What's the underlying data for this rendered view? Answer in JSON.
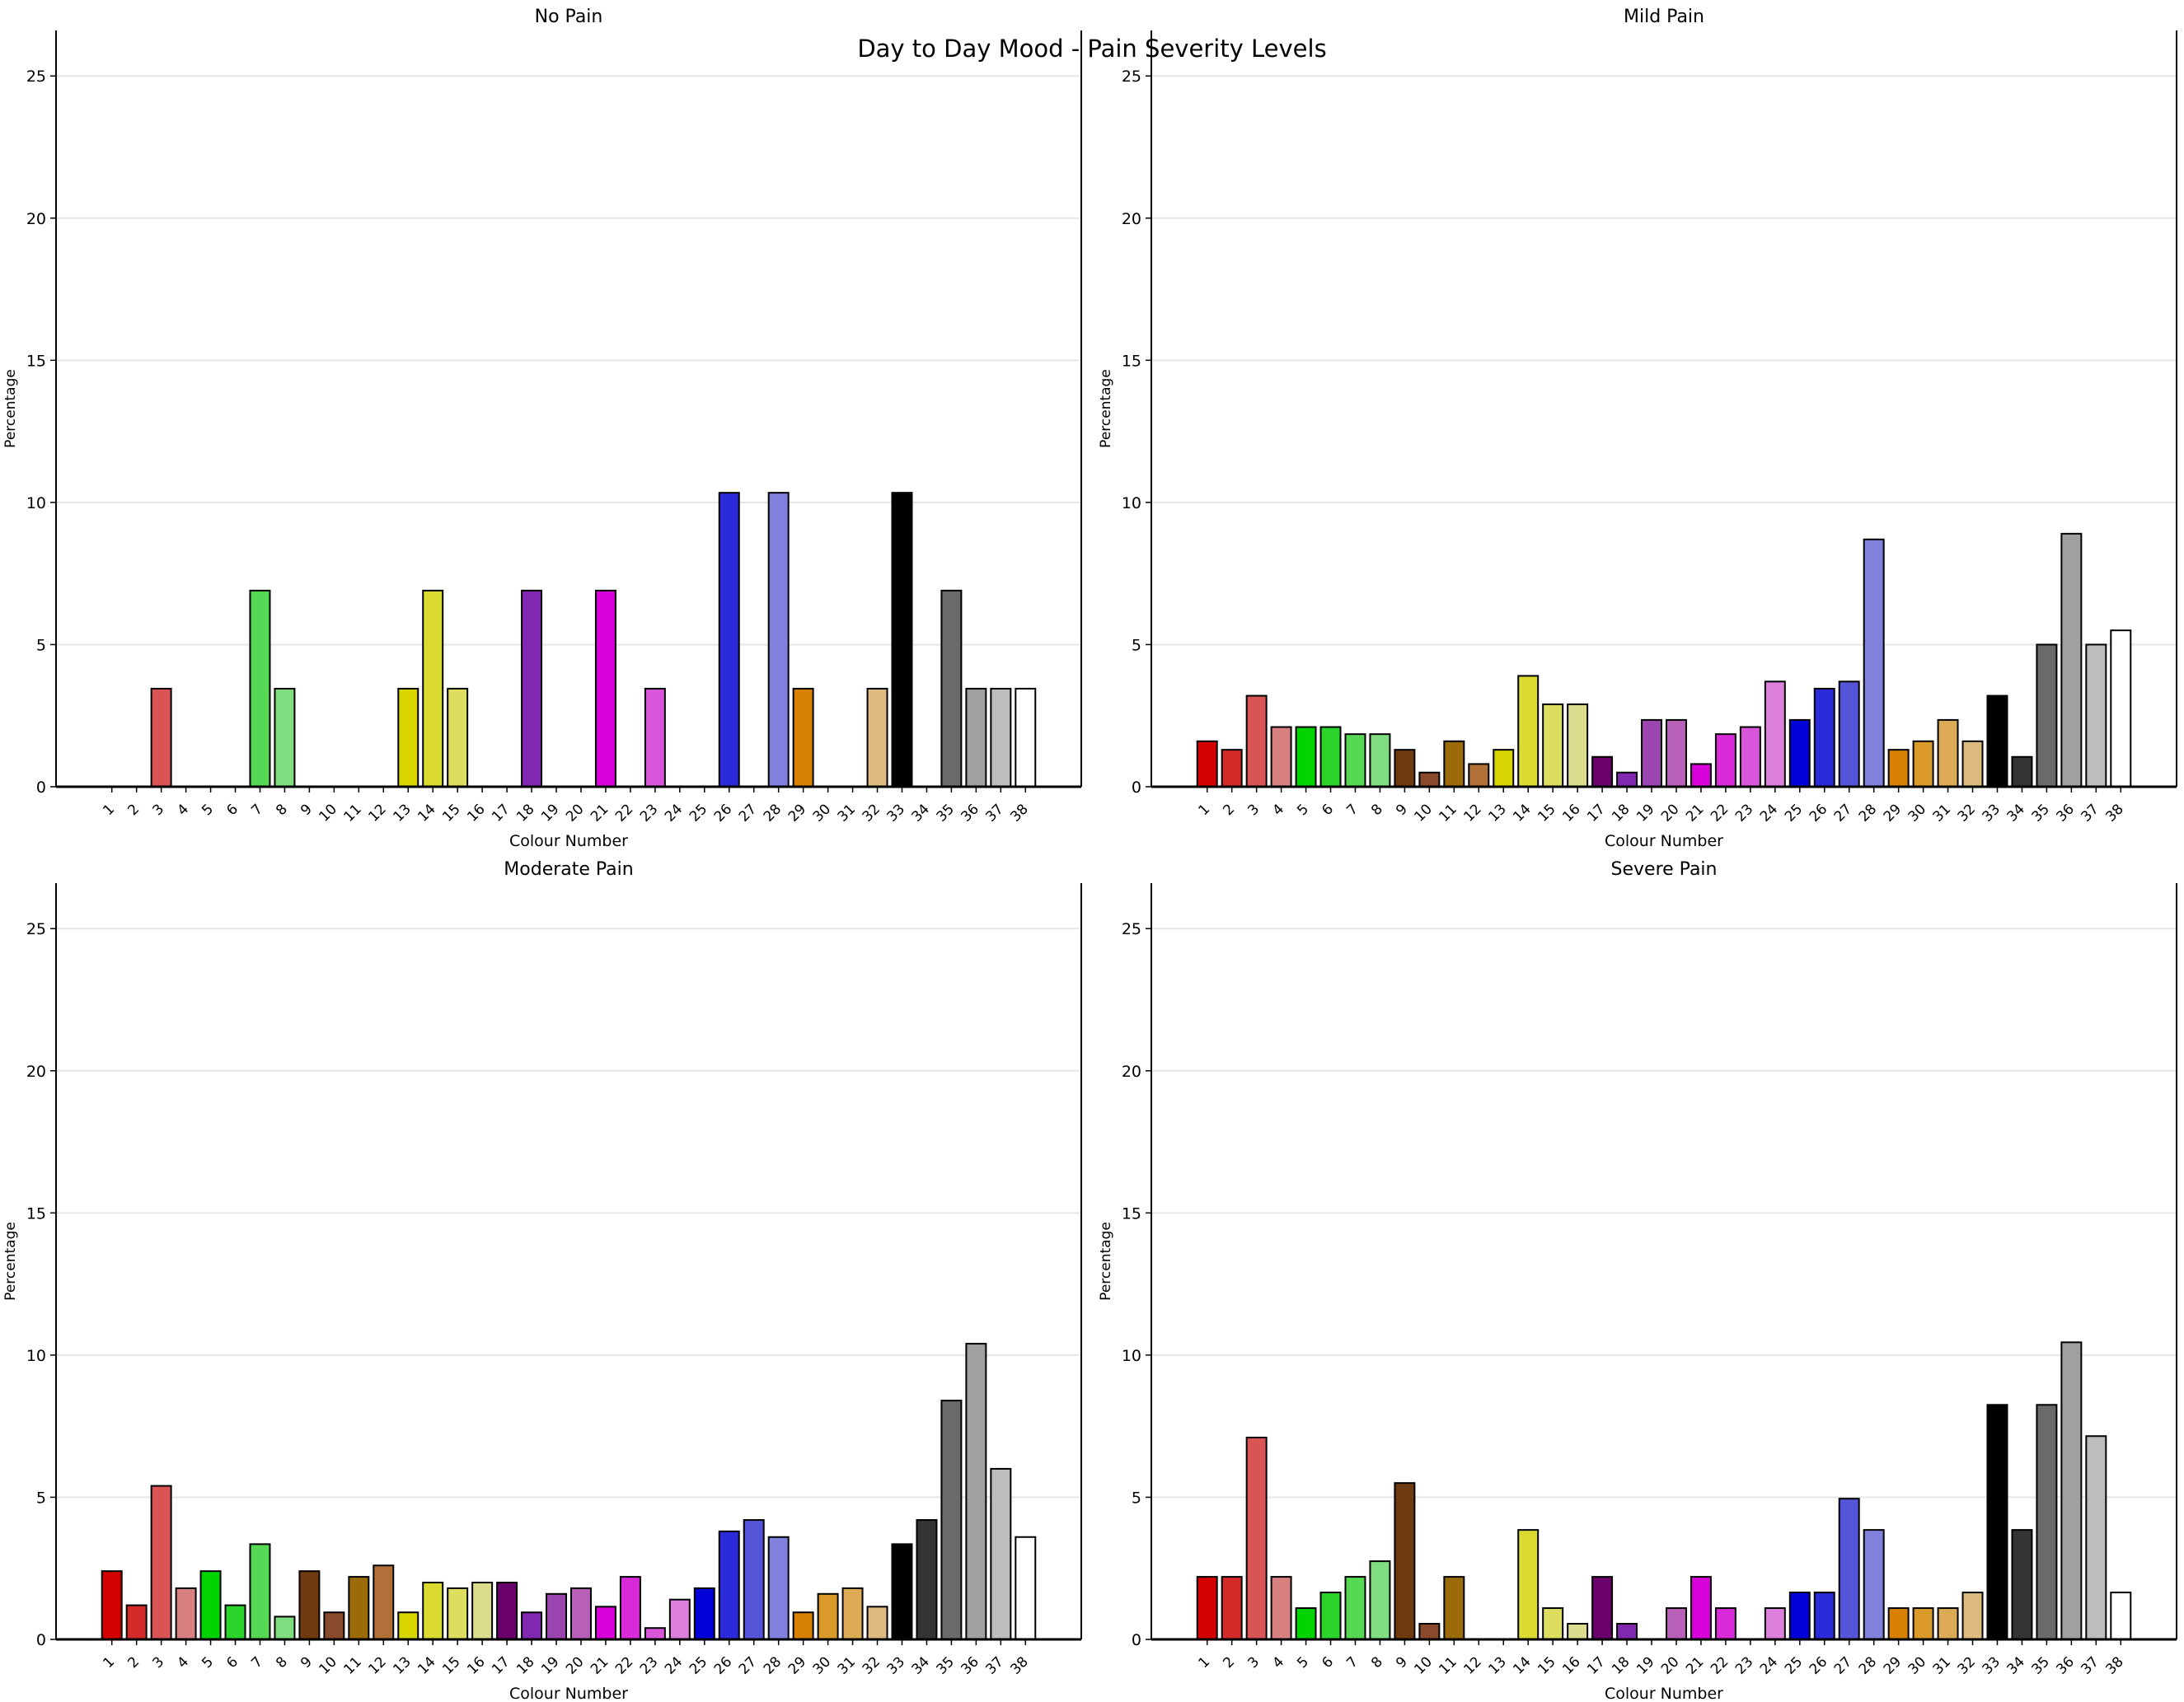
{
  "title": "Day to Day Mood - Pain Severity Levels",
  "colors": [
    "#d40000",
    "#d42a2a",
    "#d95555",
    "#d88080",
    "#00d400",
    "#2ad42a",
    "#55d955",
    "#80dd80",
    "#703a10",
    "#884a2a",
    "#9a6b08",
    "#b07038",
    "#d8d400",
    "#dada30",
    "#dddd60",
    "#dddd90",
    "#6a006a",
    "#8028b0",
    "#9a45b0",
    "#b860b8",
    "#d800d8",
    "#d82ad8",
    "#d955d9",
    "#dd80dd",
    "#0000d8",
    "#2a2ad8",
    "#5555d9",
    "#8080dd",
    "#d88000",
    "#d99a2a",
    "#ddaa55",
    "#ddbb80",
    "#000000",
    "#333333",
    "#6a6a6a",
    "#a0a0a0",
    "#bdbdbd",
    "#ffffff"
  ],
  "chart_data": [
    {
      "type": "bar",
      "title": "No Pain",
      "xlabel": "Colour Number",
      "ylabel": "Percentage",
      "ylim": [
        0,
        26.6
      ],
      "yticks": [
        0,
        5,
        10,
        15,
        20,
        25
      ],
      "grid": true,
      "categories": [
        "1",
        "2",
        "3",
        "4",
        "5",
        "6",
        "7",
        "8",
        "9",
        "10",
        "11",
        "12",
        "13",
        "14",
        "15",
        "16",
        "17",
        "18",
        "19",
        "20",
        "21",
        "22",
        "23",
        "24",
        "25",
        "26",
        "27",
        "28",
        "29",
        "30",
        "31",
        "32",
        "33",
        "34",
        "35",
        "36",
        "37",
        "38"
      ],
      "values": [
        0,
        0,
        3.45,
        0,
        0,
        0,
        6.9,
        3.45,
        0,
        0,
        0,
        0,
        3.45,
        6.9,
        3.45,
        0,
        0,
        6.9,
        0,
        0,
        6.9,
        0,
        3.45,
        0,
        0,
        10.34,
        0,
        10.34,
        3.45,
        0,
        0,
        3.45,
        10.34,
        0,
        6.9,
        3.45,
        3.45,
        3.45
      ]
    },
    {
      "type": "bar",
      "title": "Mild Pain",
      "xlabel": "Colour Number",
      "ylabel": "Percentage",
      "ylim": [
        0,
        26.6
      ],
      "yticks": [
        0,
        5,
        10,
        15,
        20,
        25
      ],
      "grid": true,
      "categories": [
        "1",
        "2",
        "3",
        "4",
        "5",
        "6",
        "7",
        "8",
        "9",
        "10",
        "11",
        "12",
        "13",
        "14",
        "15",
        "16",
        "17",
        "18",
        "19",
        "20",
        "21",
        "22",
        "23",
        "24",
        "25",
        "26",
        "27",
        "28",
        "29",
        "30",
        "31",
        "32",
        "33",
        "34",
        "35",
        "36",
        "37",
        "38"
      ],
      "values": [
        1.6,
        1.3,
        3.2,
        2.1,
        2.1,
        2.1,
        1.85,
        1.85,
        1.3,
        0.5,
        1.6,
        0.8,
        1.3,
        3.9,
        2.9,
        2.9,
        1.05,
        0.5,
        2.35,
        2.35,
        0.8,
        1.85,
        2.1,
        3.7,
        2.35,
        3.45,
        3.7,
        8.7,
        1.3,
        1.6,
        2.35,
        1.6,
        3.2,
        1.05,
        5.0,
        8.9,
        5.0,
        5.5
      ]
    },
    {
      "type": "bar",
      "title": "Moderate Pain",
      "xlabel": "Colour Number",
      "ylabel": "Percentage",
      "ylim": [
        0,
        26.6
      ],
      "yticks": [
        0,
        5,
        10,
        15,
        20,
        25
      ],
      "grid": true,
      "categories": [
        "1",
        "2",
        "3",
        "4",
        "5",
        "6",
        "7",
        "8",
        "9",
        "10",
        "11",
        "12",
        "13",
        "14",
        "15",
        "16",
        "17",
        "18",
        "19",
        "20",
        "21",
        "22",
        "23",
        "24",
        "25",
        "26",
        "27",
        "28",
        "29",
        "30",
        "31",
        "32",
        "33",
        "34",
        "35",
        "36",
        "37",
        "38"
      ],
      "values": [
        2.4,
        1.2,
        5.4,
        1.8,
        2.4,
        1.2,
        3.35,
        0.8,
        2.4,
        0.95,
        2.2,
        2.6,
        0.95,
        2.0,
        1.8,
        2.0,
        2.0,
        0.95,
        1.6,
        1.8,
        1.15,
        2.2,
        0.4,
        1.4,
        1.8,
        3.8,
        4.2,
        3.6,
        0.95,
        1.6,
        1.8,
        1.15,
        3.35,
        4.2,
        8.4,
        10.4,
        6.0,
        3.6
      ]
    },
    {
      "type": "bar",
      "title": "Severe Pain",
      "xlabel": "Colour Number",
      "ylabel": "Percentage",
      "ylim": [
        0,
        26.6
      ],
      "yticks": [
        0,
        5,
        10,
        15,
        20,
        25
      ],
      "grid": true,
      "categories": [
        "1",
        "2",
        "3",
        "4",
        "5",
        "6",
        "7",
        "8",
        "9",
        "10",
        "11",
        "12",
        "13",
        "14",
        "15",
        "16",
        "17",
        "18",
        "19",
        "20",
        "21",
        "22",
        "23",
        "24",
        "25",
        "26",
        "27",
        "28",
        "29",
        "30",
        "31",
        "32",
        "33",
        "34",
        "35",
        "36",
        "37",
        "38"
      ],
      "values": [
        2.2,
        2.2,
        7.1,
        2.2,
        1.1,
        1.65,
        2.2,
        2.75,
        5.5,
        0.55,
        2.2,
        0,
        0,
        3.85,
        1.1,
        0.55,
        2.2,
        0.55,
        0,
        1.1,
        2.2,
        1.1,
        0,
        1.1,
        1.65,
        1.65,
        4.95,
        3.85,
        1.1,
        1.1,
        1.1,
        1.65,
        8.25,
        3.85,
        8.25,
        10.45,
        7.15,
        1.65
      ]
    }
  ]
}
